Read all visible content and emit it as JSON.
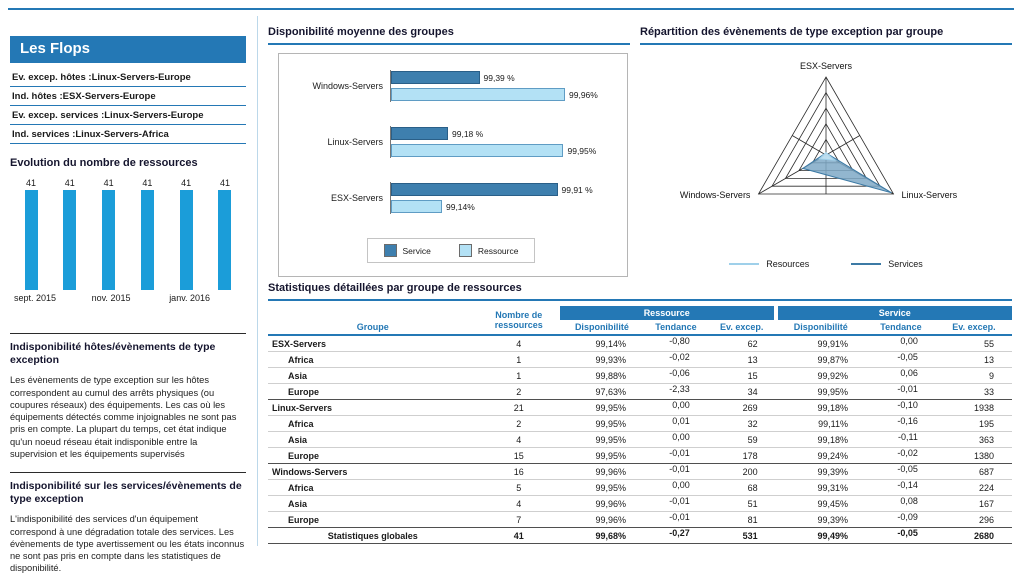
{
  "colors": {
    "accent": "#2478b5",
    "bright_bar": "#1b9dd9",
    "service_bar": "#3e7fae",
    "resource_bar": "#b3e1f5"
  },
  "sidebar": {
    "title": "Les Flops",
    "flops": [
      {
        "label": "Ev. excep. hôtes :",
        "value": "Linux-Servers-Europe"
      },
      {
        "label": "Ind. hôtes :",
        "value": "ESX-Servers-Europe"
      },
      {
        "label": "Ev. excep. services :",
        "value": "Linux-Servers-Europe"
      },
      {
        "label": "Ind. services :",
        "value": "Linux-Servers-Africa"
      }
    ],
    "notes": [
      {
        "title": "Indisponibilité hôtes/évènements de type exception",
        "body": "Les évènements de type exception sur les hôtes correspondent au cumul des arrêts physiques (ou coupures réseaux) des équipements. Les cas où les équipements détectés comme injoignables ne sont pas pris en compte. La plupart du temps, cet état indique qu'un noeud réseau était indisponible entre la supervision et les équipements supervisés"
      },
      {
        "title": "Indisponibilité sur les services/évènements de type exception",
        "body": "L'indisponibilité des services d'un équipement correspond à une dégradation totale des services. Les évènements de type avertissement ou les états inconnus ne sont pas pris en compte dans les statistiques de disponibilité."
      }
    ]
  },
  "chart_data": [
    {
      "id": "evolution-resources",
      "type": "bar",
      "title": "Evolution du nombre de ressources",
      "values": [
        41,
        41,
        41,
        41,
        41,
        41
      ],
      "x_tick_labels": [
        "sept. 2015",
        "nov. 2015",
        "janv. 2016"
      ],
      "x_tick_positions": [
        0,
        2,
        4
      ],
      "ylim": [
        0,
        41
      ],
      "bar_color": "#1b9dd9"
    },
    {
      "id": "availability-by-group",
      "type": "bar",
      "orientation": "horizontal",
      "title": "Disponibilité moyenne des groupes",
      "categories": [
        "Windows-Servers",
        "Linux-Servers",
        "ESX-Servers"
      ],
      "series": [
        {
          "name": "Service",
          "color": "#3e7fae",
          "border": "#2a5f88",
          "values": [
            99.39,
            99.18,
            99.91
          ],
          "labels": [
            "99,39 %",
            "99,18 %",
            "99,91 %"
          ]
        },
        {
          "name": "Ressource",
          "color": "#b3e1f5",
          "border": "#5f9cc4",
          "values": [
            99.96,
            99.95,
            99.14
          ],
          "labels": [
            "99,96%",
            "99,95%",
            "99,14%"
          ]
        }
      ],
      "xlim": [
        98.8,
        100
      ],
      "unit": "%",
      "legend_position": "bottom"
    },
    {
      "id": "exception-events-by-group",
      "type": "radar",
      "title": "Répartition des évènements de type exception par groupe",
      "axes": [
        "ESX-Servers",
        "Linux-Servers",
        "Windows-Servers"
      ],
      "rings": 5,
      "scale_max": 2000,
      "series": [
        {
          "name": "Resources",
          "values": [
            62,
            269,
            200
          ],
          "fill": "#c5e6f7",
          "stroke": "#9fd0ea"
        },
        {
          "name": "Services",
          "values": [
            55,
            1938,
            687
          ],
          "fill": "#7fa9c7",
          "stroke": "#3c7aa5"
        }
      ],
      "legend_position": "bottom"
    },
    {
      "id": "stats-by-resource-group",
      "type": "table",
      "title": "Statistiques détaillées par groupe de ressources",
      "columns": {
        "groupe": "Groupe",
        "nombre": "Nombre de ressources",
        "band_ressource": "Ressource",
        "band_service": "Service",
        "sub": [
          "Disponibilité",
          "Tendance",
          "Ev. excep."
        ]
      },
      "rows": [
        {
          "type": "group",
          "name": "ESX-Servers",
          "cells": [
            "4",
            "99,14%",
            "-0,80",
            "62",
            "99,91%",
            "0,00",
            "55"
          ]
        },
        {
          "type": "sub",
          "name": "Africa",
          "cells": [
            "1",
            "99,93%",
            "-0,02",
            "13",
            "99,87%",
            "-0,05",
            "13"
          ]
        },
        {
          "type": "sub",
          "name": "Asia",
          "cells": [
            "1",
            "99,88%",
            "-0,06",
            "15",
            "99,92%",
            "0,06",
            "9"
          ]
        },
        {
          "type": "sub",
          "name": "Europe",
          "cells": [
            "2",
            "97,63%",
            "-2,33",
            "34",
            "99,95%",
            "-0,01",
            "33"
          ]
        },
        {
          "type": "group",
          "name": "Linux-Servers",
          "cells": [
            "21",
            "99,95%",
            "0,00",
            "269",
            "99,18%",
            "-0,10",
            "1938"
          ]
        },
        {
          "type": "sub",
          "name": "Africa",
          "cells": [
            "2",
            "99,95%",
            "0,01",
            "32",
            "99,11%",
            "-0,16",
            "195"
          ]
        },
        {
          "type": "sub",
          "name": "Asia",
          "cells": [
            "4",
            "99,95%",
            "0,00",
            "59",
            "99,18%",
            "-0,11",
            "363"
          ]
        },
        {
          "type": "sub",
          "name": "Europe",
          "cells": [
            "15",
            "99,95%",
            "-0,01",
            "178",
            "99,24%",
            "-0,02",
            "1380"
          ]
        },
        {
          "type": "group",
          "name": "Windows-Servers",
          "cells": [
            "16",
            "99,96%",
            "-0,01",
            "200",
            "99,39%",
            "-0,05",
            "687"
          ]
        },
        {
          "type": "sub",
          "name": "Africa",
          "cells": [
            "5",
            "99,95%",
            "0,00",
            "68",
            "99,31%",
            "-0,14",
            "224"
          ]
        },
        {
          "type": "sub",
          "name": "Asia",
          "cells": [
            "4",
            "99,96%",
            "-0,01",
            "51",
            "99,45%",
            "0,08",
            "167"
          ]
        },
        {
          "type": "sub",
          "name": "Europe",
          "cells": [
            "7",
            "99,96%",
            "-0,01",
            "81",
            "99,39%",
            "-0,09",
            "296"
          ]
        },
        {
          "type": "footer",
          "name": "Statistiques globales",
          "cells": [
            "41",
            "99,68%",
            "-0,27",
            "531",
            "99,49%",
            "-0,05",
            "2680"
          ]
        }
      ]
    }
  ]
}
